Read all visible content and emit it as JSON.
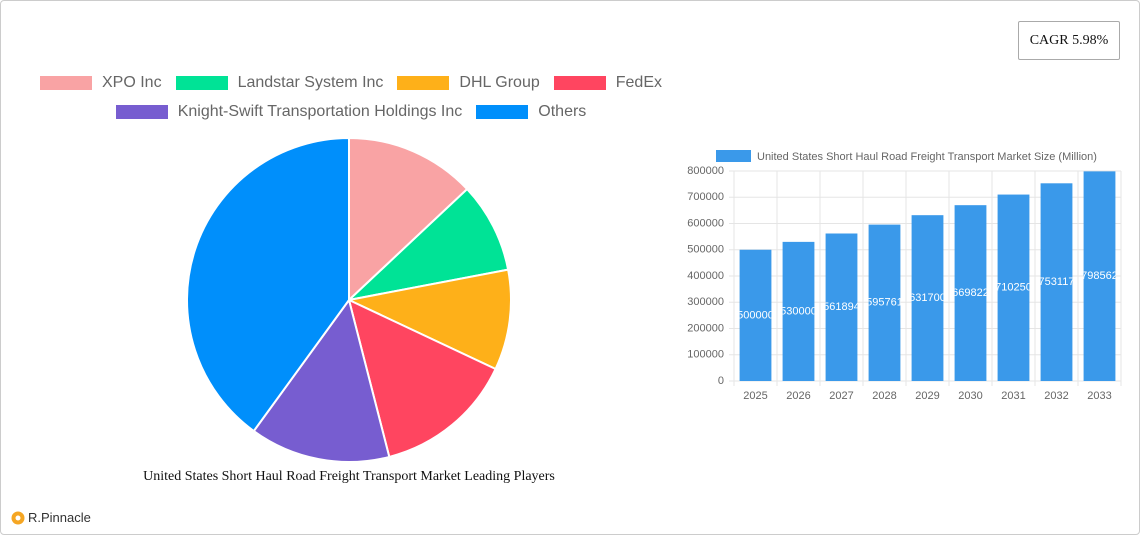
{
  "cagr": "CAGR 5.98%",
  "brand": "R.Pinnacle",
  "chart_data": [
    {
      "type": "pie",
      "title": "United States Short Haul Road Freight Transport Market Leading Players",
      "categories": [
        "XPO Inc",
        "Landstar System Inc",
        "DHL Group",
        "FedEx",
        "Knight-Swift Transportation Holdings Inc",
        "Others"
      ],
      "values": [
        13,
        9,
        10,
        14,
        14,
        40
      ],
      "colors": [
        "#f9a3a4",
        "#00e396",
        "#feb019",
        "#ff4560",
        "#775dd0",
        "#008ffb"
      ]
    },
    {
      "type": "bar",
      "series": [
        {
          "name": "United States Short Haul Road Freight Transport Market Size (Million)",
          "color": "#3a99ea",
          "values": [
            500000,
            530000,
            561894,
            595761,
            631700,
            669822,
            710250,
            753117,
            798562
          ]
        }
      ],
      "categories": [
        "2025",
        "2026",
        "2027",
        "2028",
        "2029",
        "2030",
        "2031",
        "2032",
        "2033"
      ],
      "ylim": [
        0,
        800000
      ],
      "yticks": [
        0,
        100000,
        200000,
        300000,
        400000,
        500000,
        600000,
        700000,
        800000
      ],
      "grid": true
    }
  ]
}
